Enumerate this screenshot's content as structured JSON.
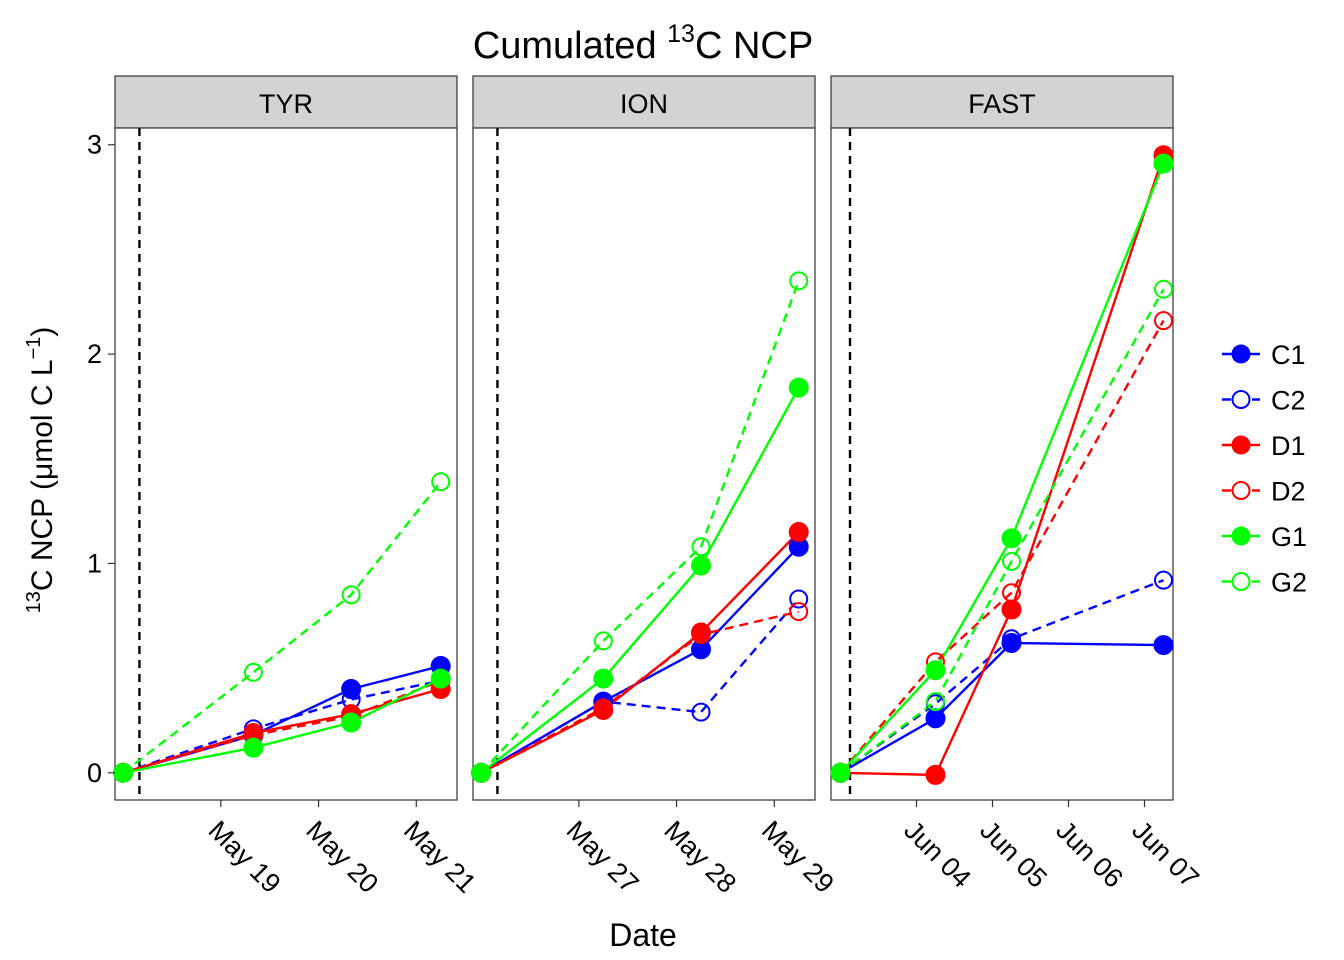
{
  "chart_data": {
    "type": "line",
    "title_main": "Cumulated ",
    "title_sup": "13",
    "title_rest": "C NCP",
    "xlabel": "Date",
    "ylabel_sup": "13",
    "ylabel_main": "C NCP (",
    "ylabel_mu": "μ",
    "ylabel_unit": "mol C L",
    "ylabel_exp": "−1",
    "ylabel_close": ")",
    "ylim": [
      -0.13,
      3.08
    ],
    "y_ticks": [
      0,
      1,
      2,
      3
    ],
    "y_tick_labels": [
      "0",
      "1",
      "2",
      "3"
    ],
    "grid": false,
    "legend_position": "right",
    "colors": {
      "C": "#0000ff",
      "D": "#ff0000",
      "G": "#00ff00",
      "vline": "#000000",
      "strip": "#d3d3d3",
      "panel_border": "#333333"
    },
    "series_styles": [
      {
        "name": "C1",
        "color": "#0000ff",
        "filled": true,
        "dashed": false
      },
      {
        "name": "C2",
        "color": "#0000ff",
        "filled": false,
        "dashed": true
      },
      {
        "name": "D1",
        "color": "#ff0000",
        "filled": true,
        "dashed": false
      },
      {
        "name": "D2",
        "color": "#ff0000",
        "filled": false,
        "dashed": true
      },
      {
        "name": "G1",
        "color": "#00ff00",
        "filled": true,
        "dashed": false
      },
      {
        "name": "G2",
        "color": "#00ff00",
        "filled": false,
        "dashed": true
      }
    ],
    "panels": [
      {
        "strip": "TYR",
        "x_domain": [
          "2016-05-17T22:00",
          "2016-05-21T10:00"
        ],
        "vline_x": "2016-05-18T04:00",
        "x_ticks": [
          "2016-05-19",
          "2016-05-20",
          "2016-05-21"
        ],
        "x_tick_labels": [
          "May 19",
          "May 20",
          "May 21"
        ],
        "x": [
          "2016-05-18T00:00",
          "2016-05-19T08:00",
          "2016-05-20T08:00",
          "2016-05-21T06:00"
        ],
        "series": [
          {
            "name": "C1",
            "values": [
              0,
              0.18,
              0.4,
              0.51
            ]
          },
          {
            "name": "C2",
            "values": [
              0,
              0.21,
              0.35,
              0.44
            ]
          },
          {
            "name": "D1",
            "values": [
              0,
              0.19,
              0.28,
              0.4
            ]
          },
          {
            "name": "D2",
            "values": [
              0,
              0.18,
              0.27,
              0.44
            ]
          },
          {
            "name": "G1",
            "values": [
              0,
              0.12,
              0.24,
              0.45
            ]
          },
          {
            "name": "G2",
            "values": [
              0,
              0.48,
              0.85,
              1.39
            ]
          }
        ]
      },
      {
        "strip": "ION",
        "x_domain": [
          "2016-05-25T22:00",
          "2016-05-29T10:00"
        ],
        "vline_x": "2016-05-26T04:00",
        "x_ticks": [
          "2016-05-27",
          "2016-05-28",
          "2016-05-29"
        ],
        "x_tick_labels": [
          "May 27",
          "May 28",
          "May 29"
        ],
        "x": [
          "2016-05-26T00:00",
          "2016-05-27T06:00",
          "2016-05-28T06:00",
          "2016-05-29T06:00"
        ],
        "series": [
          {
            "name": "C1",
            "values": [
              0,
              0.34,
              0.59,
              1.08
            ]
          },
          {
            "name": "C2",
            "values": [
              0,
              0.34,
              0.29,
              0.83
            ]
          },
          {
            "name": "D1",
            "values": [
              0,
              0.3,
              0.67,
              1.15
            ]
          },
          {
            "name": "D2",
            "values": [
              0,
              0.31,
              0.66,
              0.77
            ]
          },
          {
            "name": "G1",
            "values": [
              0,
              0.45,
              0.99,
              1.84
            ]
          },
          {
            "name": "G2",
            "values": [
              0,
              0.63,
              1.08,
              2.35
            ]
          }
        ]
      },
      {
        "strip": "FAST",
        "x_domain": [
          "2016-06-02T21:00",
          "2016-06-07T09:00"
        ],
        "vline_x": "2016-06-03T03:00",
        "x_ticks": [
          "2016-06-04",
          "2016-06-05",
          "2016-06-06",
          "2016-06-07"
        ],
        "x_tick_labels": [
          "Jun 04",
          "Jun 05",
          "Jun 06",
          "Jun 07"
        ],
        "x": [
          "2016-06-03T00:00",
          "2016-06-04T06:00",
          "2016-06-05T06:00",
          "2016-06-07T06:00"
        ],
        "series": [
          {
            "name": "C1",
            "values": [
              0,
              0.26,
              0.62,
              0.61
            ]
          },
          {
            "name": "C2",
            "values": [
              0,
              0.33,
              0.64,
              0.92
            ]
          },
          {
            "name": "D1",
            "values": [
              0,
              -0.01,
              0.78,
              2.95
            ]
          },
          {
            "name": "D2",
            "values": [
              0,
              0.53,
              0.86,
              2.16
            ]
          },
          {
            "name": "G1",
            "values": [
              0,
              0.49,
              1.12,
              2.91
            ]
          },
          {
            "name": "G2",
            "values": [
              0,
              0.34,
              1.01,
              2.31
            ]
          }
        ]
      }
    ]
  }
}
